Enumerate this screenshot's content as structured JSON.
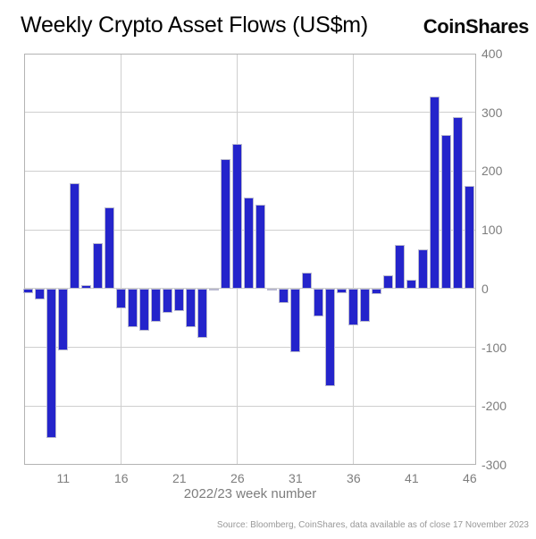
{
  "header": {
    "title": "Weekly Crypto Asset Flows (US$m)",
    "logo": "CoinShares"
  },
  "footer": {
    "source": "Source: Bloomberg, CoinShares, data available as of close 17 November 2023"
  },
  "chart_data": {
    "type": "bar",
    "title": "Weekly Crypto Asset Flows (US$m)",
    "xlabel": "2022/23 week number",
    "ylabel": "",
    "categories": [
      8,
      9,
      10,
      11,
      12,
      13,
      14,
      15,
      16,
      17,
      18,
      19,
      20,
      21,
      22,
      23,
      24,
      25,
      26,
      27,
      28,
      29,
      30,
      31,
      32,
      33,
      34,
      35,
      36,
      37,
      38,
      39,
      40,
      41,
      42,
      43,
      44,
      45,
      46
    ],
    "values": [
      -8,
      -19,
      -255,
      -105,
      179,
      6,
      77,
      138,
      -34,
      -66,
      -72,
      -57,
      -41,
      -39,
      -65,
      -84,
      -4,
      220,
      246,
      155,
      143,
      -3,
      -25,
      -108,
      27,
      -47,
      -166,
      -8,
      -62,
      -57,
      -10,
      22,
      75,
      15,
      66,
      327,
      261,
      292,
      175
    ],
    "x_tick_labels": [
      11,
      16,
      21,
      26,
      31,
      36,
      41,
      46
    ],
    "y_tick_labels": [
      400,
      300,
      200,
      100,
      0,
      -100,
      -200,
      -300
    ],
    "x_gridlines": [
      16,
      26,
      36
    ],
    "ylim": [
      -300,
      400
    ],
    "xlim": [
      7.63,
      46.55
    ],
    "grid": true,
    "legend_position": "none",
    "bar_color": "#2424CB",
    "bar_edge_color": "#b9b9cf",
    "grid_color": "#cfcfcf",
    "frame_color": "#b3b3b3",
    "tick_color": "#7d7d7d"
  }
}
